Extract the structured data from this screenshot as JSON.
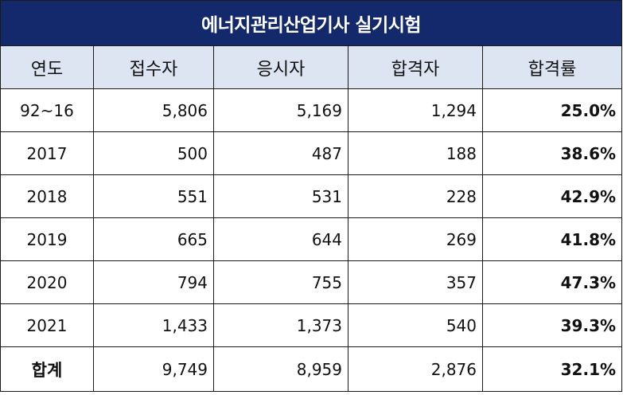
{
  "title": "에너지관리산업기사 실기시험",
  "headers": [
    "연도",
    "접수자",
    "응시자",
    "합격자",
    "합격률"
  ],
  "rows": [
    {
      "year": "92~16",
      "applicants": "5,806",
      "examinees": "5,169",
      "passed": "1,294",
      "rate": "25.0%"
    },
    {
      "year": "2017",
      "applicants": "500",
      "examinees": "487",
      "passed": "188",
      "rate": "38.6%"
    },
    {
      "year": "2018",
      "applicants": "551",
      "examinees": "531",
      "passed": "228",
      "rate": "42.9%"
    },
    {
      "year": "2019",
      "applicants": "665",
      "examinees": "644",
      "passed": "269",
      "rate": "41.8%"
    },
    {
      "year": "2020",
      "applicants": "794",
      "examinees": "755",
      "passed": "357",
      "rate": "47.3%"
    },
    {
      "year": "2021",
      "applicants": "1,433",
      "examinees": "1,373",
      "passed": "540",
      "rate": "39.3%"
    }
  ],
  "total": {
    "label": "합계",
    "applicants": "9,749",
    "examinees": "8,959",
    "passed": "2,876",
    "rate": "32.1%"
  },
  "colors": {
    "title_bg": "#13296b",
    "header_bg": "#dde5f3"
  }
}
